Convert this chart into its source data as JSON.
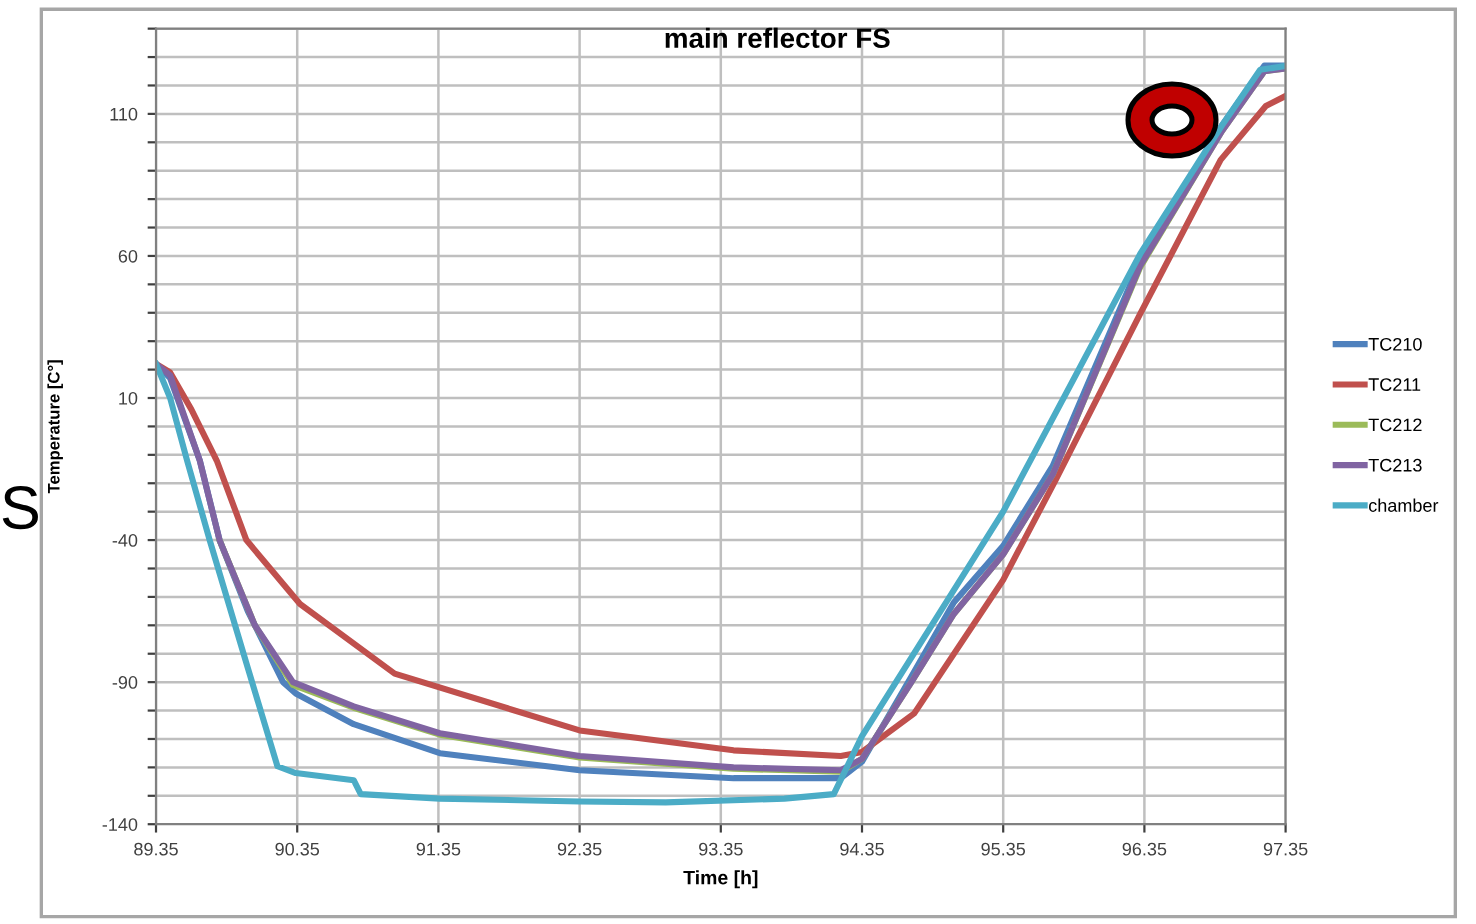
{
  "chart_data": {
    "type": "line",
    "title": "main reflector FS",
    "xlabel": "Time [h]",
    "ylabel": "Temperature [C°]",
    "annotations": [
      "S"
    ],
    "xlim": [
      89.35,
      97.35
    ],
    "xticks": [
      89.35,
      90.35,
      91.35,
      92.35,
      93.35,
      94.35,
      95.35,
      96.35,
      97.35
    ],
    "ylim": [
      -140,
      140
    ],
    "yticks": [
      -140,
      {
        "value": -130,
        "label": null
      },
      {
        "value": -120,
        "label": null
      },
      {
        "value": -110,
        "label": null
      },
      {
        "value": -100,
        "label": null
      },
      -90,
      {
        "value": -80,
        "label": null
      },
      {
        "value": -70,
        "label": null
      },
      {
        "value": -60,
        "label": null
      },
      {
        "value": -50,
        "label": null
      },
      -40,
      {
        "value": -30,
        "label": null
      },
      {
        "value": -20,
        "label": null
      },
      {
        "value": -10,
        "label": null
      },
      {
        "value": 0,
        "label": null
      },
      10,
      {
        "value": 20,
        "label": null
      },
      {
        "value": 30,
        "label": null
      },
      {
        "value": 40,
        "label": null
      },
      {
        "value": 50,
        "label": null
      },
      60,
      {
        "value": 70,
        "label": null
      },
      {
        "value": 80,
        "label": null
      },
      {
        "value": 90,
        "label": null
      },
      {
        "value": 100,
        "label": null
      },
      110,
      {
        "value": 120,
        "label": null
      },
      {
        "value": 130,
        "label": null
      },
      {
        "value": 140,
        "label": null
      }
    ],
    "grid": true,
    "legend": "right",
    "marker": "none",
    "line_style": "solid",
    "series": [
      {
        "name": "TC210",
        "color": "#4f81bd",
        "x": [
          89.35,
          89.45,
          89.66,
          89.8,
          90.0,
          90.25,
          90.34,
          90.75,
          91.36,
          92.35,
          93.44,
          94.2,
          94.35,
          94.7,
          95.0,
          95.35,
          95.7,
          96.32,
          96.9,
          97.2,
          97.35
        ],
        "values": [
          22,
          17,
          -12,
          -40,
          -65,
          -90,
          -94,
          -104.8,
          -115,
          -121,
          -123.8,
          -123.8,
          -118,
          -88,
          -62,
          -42,
          -14,
          58,
          106,
          127,
          127
        ]
      },
      {
        "name": "TC211",
        "color": "#c0504d",
        "x": [
          89.35,
          89.45,
          89.6,
          89.78,
          89.99,
          90.37,
          91.04,
          92.35,
          93.44,
          94.2,
          94.35,
          94.72,
          95.35,
          95.72,
          96.32,
          96.89,
          97.21,
          97.35
        ],
        "values": [
          22,
          19,
          6,
          -12,
          -40,
          -62.5,
          -87,
          -107,
          -114,
          -116,
          -114.6,
          -101,
          -54,
          -19,
          39.6,
          93.8,
          112.8,
          116.3
        ]
      },
      {
        "name": "TC212",
        "color": "#9bbb59",
        "x": [
          89.8,
          90.05,
          90.32,
          90.75,
          91.36,
          92.35,
          93.44,
          94.2,
          94.35,
          94.7,
          95.0,
          95.35,
          95.7,
          96.32,
          96.9,
          97.2,
          97.35
        ],
        "values": [
          -40,
          -70,
          -91,
          -99,
          -108.5,
          -116.5,
          -120.5,
          -121.5,
          -117,
          -90,
          -66,
          -45,
          -17,
          56,
          104,
          125,
          126
        ]
      },
      {
        "name": "TC213",
        "color": "#8064a2",
        "x": [
          89.35,
          89.45,
          89.66,
          89.8,
          90.05,
          90.32,
          90.75,
          91.36,
          92.35,
          93.44,
          94.2,
          94.35,
          94.7,
          95.0,
          95.35,
          95.7,
          96.32,
          96.9,
          97.2,
          97.35
        ],
        "values": [
          22,
          18,
          -12,
          -40,
          -70,
          -90,
          -98.5,
          -108,
          -116,
          -120,
          -121,
          -117,
          -90,
          -66,
          -45,
          -17,
          56.5,
          104,
          125,
          126
        ]
      },
      {
        "name": "chamber",
        "color": "#4bacc6",
        "x": [
          89.35,
          89.45,
          89.57,
          89.73,
          90.0,
          90.21,
          90.34,
          90.75,
          90.8,
          91.36,
          92.35,
          92.96,
          93.8,
          94.15,
          94.35,
          95.35,
          96.32,
          96.9,
          97.17,
          97.35
        ],
        "values": [
          22,
          10,
          -12,
          -40,
          -85,
          -119.6,
          -122,
          -124.5,
          -129.4,
          -131,
          -132,
          -132.3,
          -131,
          -129.4,
          -109,
          -30,
          60.7,
          106,
          125.5,
          126.9
        ]
      }
    ]
  }
}
